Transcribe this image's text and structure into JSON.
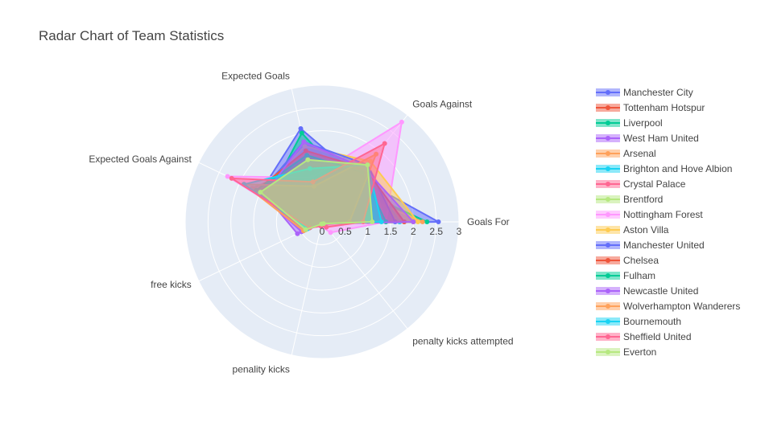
{
  "chart_data": {
    "type": "radar",
    "title": "Radar Chart of Team Statistics",
    "theta_labels": [
      "Goals For",
      "Goals Against",
      "Expected Goals",
      "Expected Goals Against",
      "free kicks",
      "penality kicks",
      "penalty kicks attempted"
    ],
    "radial_ticks": [
      "0",
      "0.5",
      "1",
      "1.5",
      "2",
      "2.5",
      "3"
    ],
    "radial_range": [
      0,
      3
    ],
    "grid": true,
    "legend_position": "right",
    "series": [
      {
        "name": "Manchester City",
        "color": "#636efa",
        "values": [
          2.55,
          1.25,
          2.1,
          1.5,
          0.5,
          0.05,
          0.05
        ]
      },
      {
        "name": "Tottenham Hotspur",
        "color": "#EF553B",
        "values": [
          2.0,
          1.25,
          1.3,
          1.7,
          0.4,
          0.05,
          0.05
        ]
      },
      {
        "name": "Liverpool",
        "color": "#00cc96",
        "values": [
          2.3,
          1.0,
          2.0,
          1.3,
          0.4,
          0.05,
          0.05
        ]
      },
      {
        "name": "West Ham United",
        "color": "#ab63fa",
        "values": [
          1.7,
          1.6,
          1.0,
          1.6,
          0.5,
          0.05,
          0.05
        ]
      },
      {
        "name": "Arsenal",
        "color": "#FFA15A",
        "values": [
          2.2,
          0.9,
          1.6,
          0.9,
          0.3,
          0.05,
          0.05
        ]
      },
      {
        "name": "Brighton and Hove Albion",
        "color": "#19d3f3",
        "values": [
          1.7,
          1.5,
          1.7,
          1.4,
          0.4,
          0.05,
          0.05
        ]
      },
      {
        "name": "Crystal Palace",
        "color": "#FF6692",
        "values": [
          1.0,
          1.4,
          1.1,
          1.5,
          0.35,
          0.05,
          0.05
        ]
      },
      {
        "name": "Brentford",
        "color": "#B6E880",
        "values": [
          1.4,
          1.6,
          1.3,
          1.6,
          0.4,
          0.05,
          0.05
        ]
      },
      {
        "name": "Nottingham Forest",
        "color": "#FF97FF",
        "values": [
          1.4,
          2.8,
          1.0,
          2.3,
          0.3,
          0.1,
          0.3
        ]
      },
      {
        "name": "Aston Villa",
        "color": "#FECB52",
        "values": [
          2.1,
          1.7,
          1.7,
          1.5,
          0.4,
          0.05,
          0.05
        ]
      },
      {
        "name": "Manchester United",
        "color": "#636efa",
        "values": [
          1.6,
          1.6,
          1.8,
          1.5,
          0.45,
          0.05,
          0.05
        ]
      },
      {
        "name": "Chelsea",
        "color": "#EF553B",
        "values": [
          1.8,
          1.5,
          1.6,
          1.6,
          0.4,
          0.05,
          0.05
        ]
      },
      {
        "name": "Fulham",
        "color": "#00cc96",
        "values": [
          1.4,
          1.4,
          1.5,
          1.6,
          0.3,
          0.05,
          0.05
        ]
      },
      {
        "name": "Newcastle United",
        "color": "#ab63fa",
        "values": [
          2.0,
          1.5,
          1.8,
          1.4,
          0.6,
          0.05,
          0.05
        ]
      },
      {
        "name": "Wolverhampton Wanderers",
        "color": "#FFA15A",
        "values": [
          0.6,
          1.9,
          0.8,
          1.9,
          0.45,
          0.05,
          0.05
        ]
      },
      {
        "name": "Bournemouth",
        "color": "#19d3f3",
        "values": [
          1.3,
          1.6,
          1.2,
          1.9,
          0.35,
          0.05,
          0.05
        ]
      },
      {
        "name": "Sheffield United",
        "color": "#FF6692",
        "values": [
          0.9,
          2.2,
          0.9,
          2.2,
          0.3,
          0.1,
          0.15
        ]
      },
      {
        "name": "Everton",
        "color": "#B6E880",
        "values": [
          1.1,
          1.6,
          1.4,
          1.5,
          0.4,
          0.05,
          0.05
        ]
      }
    ]
  }
}
